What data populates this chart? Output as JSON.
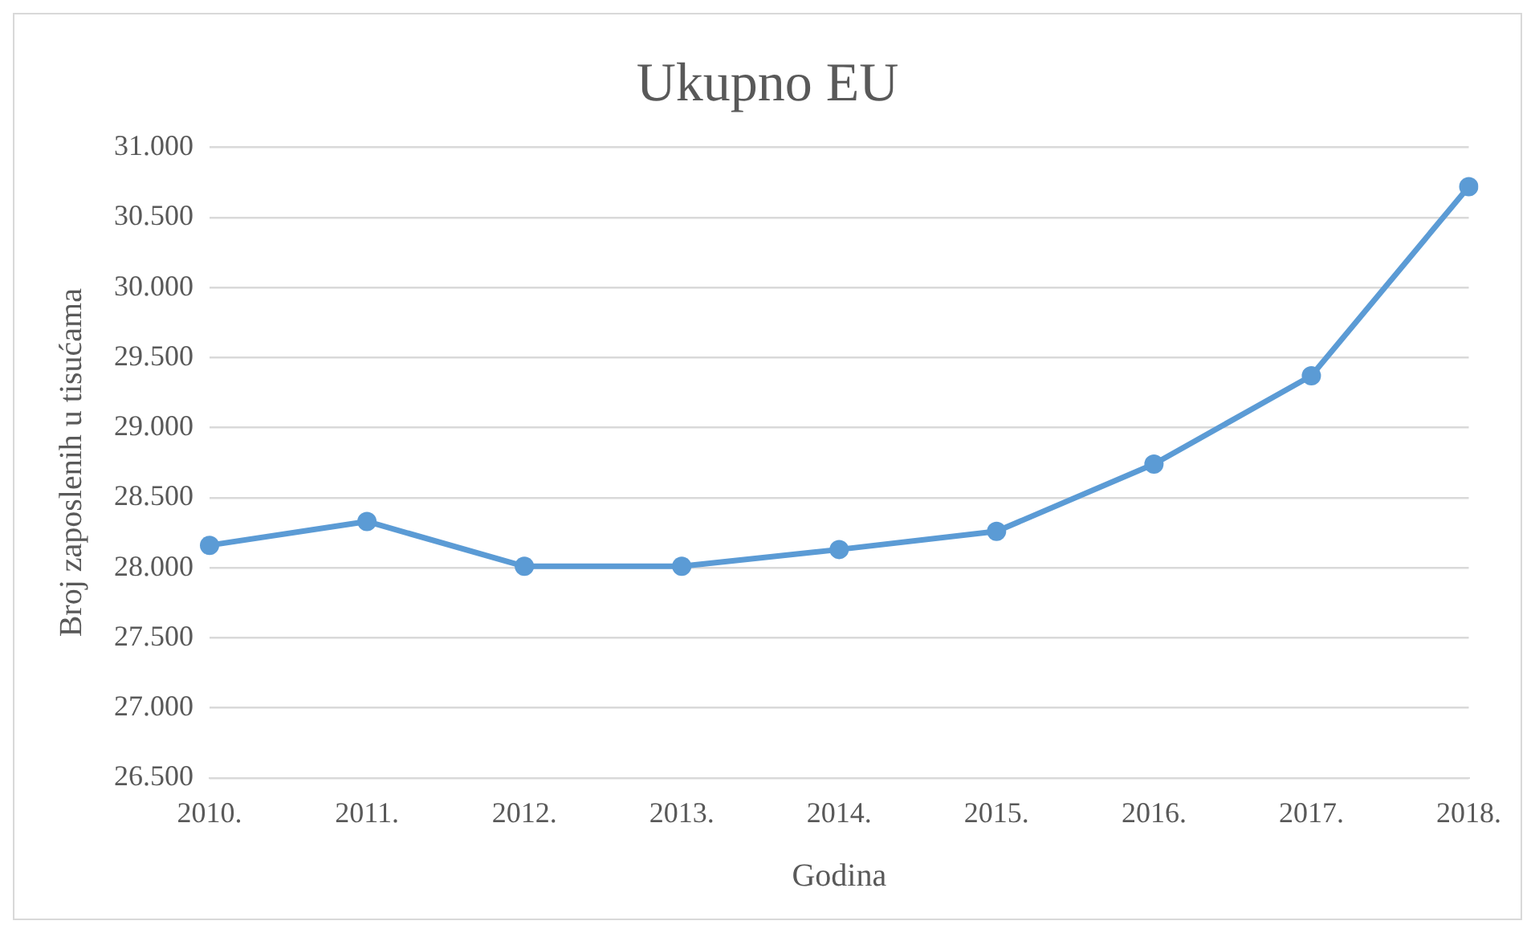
{
  "chart_data": {
    "type": "line",
    "title": "Ukupno EU",
    "xlabel": "Godina",
    "ylabel": "Broj zaposlenih u tisućama",
    "categories": [
      "2010.",
      "2011.",
      "2012.",
      "2013.",
      "2014.",
      "2015.",
      "2016.",
      "2017.",
      "2018."
    ],
    "series": [
      {
        "color": "#5b9bd5",
        "values": [
          28160,
          28330,
          28010,
          28010,
          28130,
          28260,
          28740,
          29370,
          30720
        ]
      }
    ],
    "ylim": [
      26500,
      31000
    ],
    "yticks": [
      {
        "value": 26500,
        "label": "26.500"
      },
      {
        "value": 27000,
        "label": "27.000"
      },
      {
        "value": 27500,
        "label": "27.500"
      },
      {
        "value": 28000,
        "label": "28.000"
      },
      {
        "value": 28500,
        "label": "28.500"
      },
      {
        "value": 29000,
        "label": "29.000"
      },
      {
        "value": 29500,
        "label": "29.500"
      },
      {
        "value": 30000,
        "label": "30.000"
      },
      {
        "value": 30500,
        "label": "30.500"
      },
      {
        "value": 31000,
        "label": "31.000"
      }
    ],
    "grid": "y",
    "legend": false,
    "marker": "circle",
    "line_style": "solid"
  }
}
